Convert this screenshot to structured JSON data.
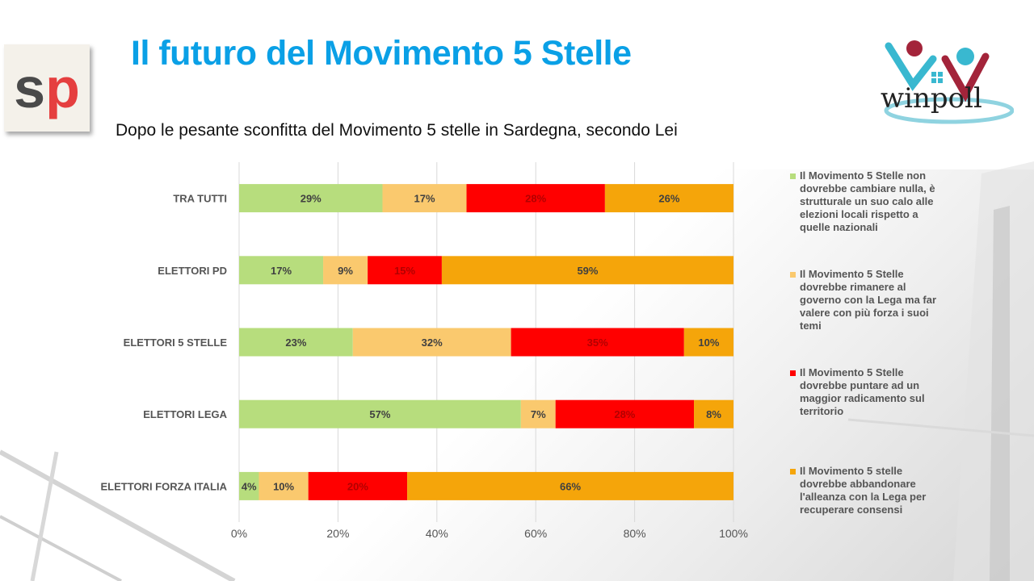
{
  "header": {
    "title": "Il futuro del Movimento 5 Stelle",
    "logo_left": {
      "icon": "sp-logo-icon",
      "letter1": "s",
      "letter2": "p"
    },
    "logo_right": {
      "icon": "winpoll-logo-icon",
      "text": "winpoll"
    }
  },
  "colors": {
    "title": "#0aa0e6",
    "green": "#b7dd7d",
    "light_orange": "#fac96e",
    "red": "#ff0000",
    "orange": "#f5a50a"
  },
  "chart_data": {
    "type": "bar",
    "orientation": "horizontal",
    "stacked": "percent",
    "title": "Dopo le pesante sconfitta del Movimento 5 stelle in Sardegna, secondo Lei",
    "categories": [
      "TRA TUTTI",
      "ELETTORI PD",
      "ELETTORI 5 STELLE",
      "ELETTORI LEGA",
      "ELETTORI FORZA ITALIA"
    ],
    "series": [
      {
        "name": "Il Movimento 5 Stelle non dovrebbe cambiare nulla, è strutturale un suo calo alle elezioni locali rispetto a quelle nazionali",
        "color": "#b7dd7d",
        "values": [
          29,
          17,
          23,
          57,
          4
        ]
      },
      {
        "name": "Il Movimento 5 Stelle dovrebbe rimanere al governo con la Lega ma far valere con più forza i suoi temi",
        "color": "#fac96e",
        "values": [
          17,
          9,
          32,
          7,
          10
        ]
      },
      {
        "name": "Il Movimento 5 Stelle dovrebbe puntare ad un maggior radicamento sul territorio",
        "color": "#ff0000",
        "values": [
          28,
          15,
          35,
          28,
          20
        ]
      },
      {
        "name": "Il Movimento 5 stelle dovrebbe abbandonare l'alleanza con la Lega per recuperare consensi",
        "color": "#f5a50a",
        "values": [
          26,
          59,
          10,
          8,
          66
        ]
      }
    ],
    "xlim": [
      0,
      100
    ],
    "xticks": [
      "0%",
      "20%",
      "40%",
      "60%",
      "80%",
      "100%"
    ],
    "grid": true,
    "legend": "right"
  }
}
